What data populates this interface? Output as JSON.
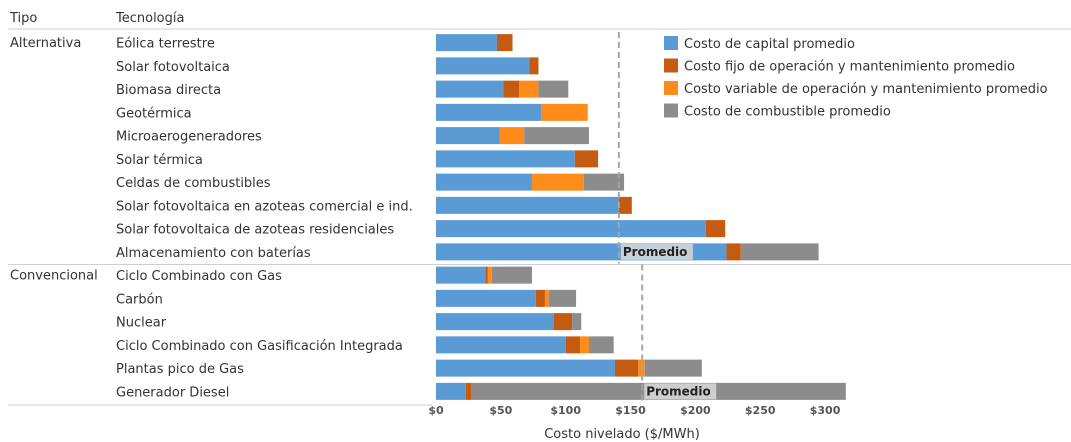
{
  "chart_data": {
    "type": "bar",
    "orientation": "horizontal",
    "stacked": true,
    "headers": {
      "group": "Tipo",
      "tech": "Tecnología"
    },
    "xlabel": "Costo nivelado ($/MWh)",
    "xlim": [
      0,
      320
    ],
    "x_ticks": [
      0,
      50,
      100,
      150,
      200,
      250,
      300
    ],
    "x_tick_labels": [
      "$0",
      "$50",
      "$100",
      "$150",
      "$200",
      "$250",
      "$300"
    ],
    "legend_position": "top-right",
    "series": [
      {
        "name": "Costo de capital promedio",
        "color": "#5b9bd5"
      },
      {
        "name": "Costo fijo de operación y mantenimiento promedio",
        "color": "#c55a11"
      },
      {
        "name": "Costo variable de operación y mantenimiento promedio",
        "color": "#ff8c1a"
      },
      {
        "name": "Costo de combustible promedio",
        "color": "#8c8c8c"
      }
    ],
    "groups": [
      {
        "name": "Alternativa",
        "average": 141,
        "average_label": "Promedio",
        "categories": [
          {
            "label": "Eólica terrestre",
            "values": [
              47,
              12,
              0,
              0
            ]
          },
          {
            "label": "Solar fotovoltaica",
            "values": [
              72,
              7,
              0,
              0
            ]
          },
          {
            "label": "Biomasa directa",
            "values": [
              52,
              12,
              15,
              23
            ]
          },
          {
            "label": "Geotérmica",
            "values": [
              81,
              0,
              36,
              0
            ]
          },
          {
            "label": "Microaerogeneradores",
            "values": [
              49,
              0,
              19,
              50
            ]
          },
          {
            "label": "Solar térmica",
            "values": [
              107,
              18,
              0,
              0
            ]
          },
          {
            "label": "Celdas de combustibles",
            "values": [
              74,
              0,
              40,
              31
            ]
          },
          {
            "label": "Solar fotovoltaica en azoteas comercial e ind.",
            "values": [
              141,
              10,
              0,
              0
            ]
          },
          {
            "label": "Solar fotovoltaica de azoteas residenciales",
            "values": [
              208,
              15,
              0,
              0
            ]
          },
          {
            "label": "Almacenamiento con baterías",
            "values": [
              224,
              11,
              0,
              60
            ]
          }
        ]
      },
      {
        "name": "Convencional",
        "average": 159,
        "average_label": "Promedio",
        "categories": [
          {
            "label": "Ciclo Combinado con Gas",
            "values": [
              38,
              2,
              3,
              31
            ]
          },
          {
            "label": "Carbón",
            "values": [
              77,
              7,
              3,
              21
            ]
          },
          {
            "label": "Nuclear",
            "values": [
              91,
              14,
              0,
              7
            ]
          },
          {
            "label": "Ciclo Combinado con Gasificación Integrada",
            "values": [
              100,
              11,
              7,
              19
            ]
          },
          {
            "label": "Plantas pico de Gas",
            "values": [
              138,
              18,
              5,
              44
            ]
          },
          {
            "label": "Generador Diesel",
            "values": [
              23,
              4,
              0,
              289
            ]
          }
        ]
      }
    ]
  }
}
